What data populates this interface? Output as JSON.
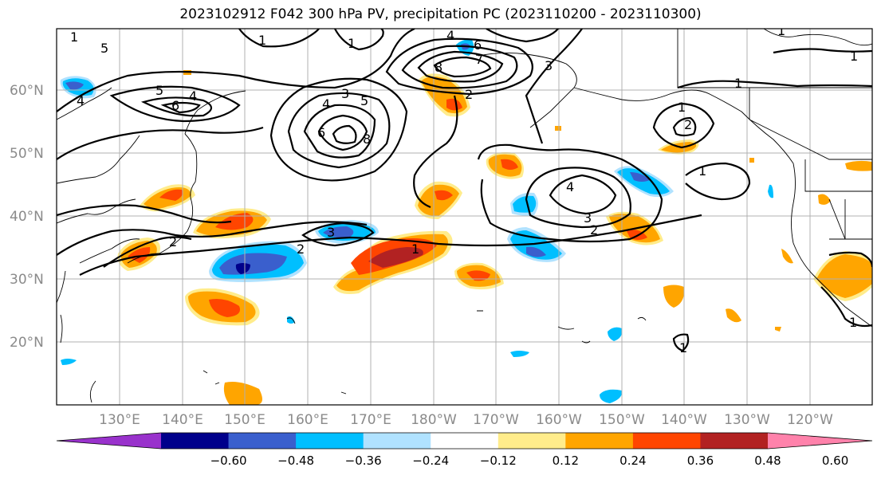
{
  "title": "2023102912 F042 300 hPa PV, precipitation PC (2023110200 - 2023110300)",
  "lat_labels": [
    "60°N",
    "50°N",
    "40°N",
    "30°N",
    "20°N"
  ],
  "lon_labels": [
    "130°E",
    "140°E",
    "150°E",
    "160°E",
    "170°E",
    "180°W",
    "170°W",
    "160°W",
    "150°W",
    "140°W",
    "130°W",
    "120°W"
  ],
  "colorbar": {
    "colors": [
      "#9932cc",
      "#00008b",
      "#3a5fcd",
      "#00bfff",
      "#b0e2ff",
      "#ffffff",
      "#ffec8b",
      "#ffa500",
      "#ff4500",
      "#b22222",
      "#ff82ab"
    ],
    "tick_labels": [
      "−0.60",
      "−0.48",
      "−0.36",
      "−0.24",
      "−0.12",
      "0.12",
      "0.24",
      "0.36",
      "0.48",
      "0.60"
    ]
  },
  "contour_labels": [
    "1",
    "2",
    "3",
    "4",
    "5",
    "6",
    "7",
    "8"
  ]
}
